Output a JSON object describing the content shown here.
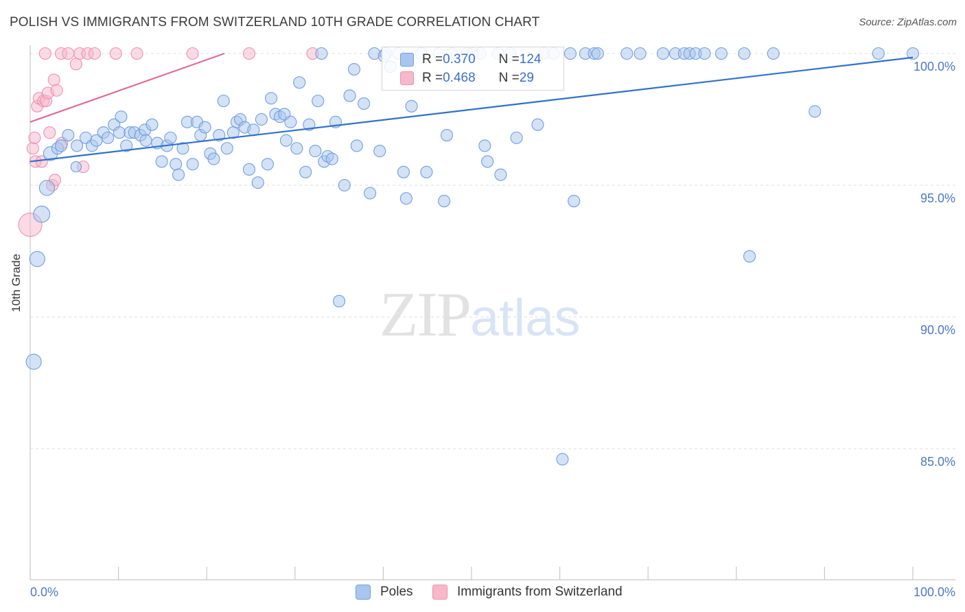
{
  "header": {
    "title": "POLISH VS IMMIGRANTS FROM SWITZERLAND 10TH GRADE CORRELATION CHART",
    "source": "Source: ZipAtlas.com"
  },
  "watermark": {
    "zip": "ZIP",
    "atlas": "atlas"
  },
  "colors": {
    "poles_fill": "#a9c6ee",
    "poles_stroke": "#6f9ee0",
    "poles_line": "#2f6fce",
    "swiss_fill": "#f6b8cb",
    "swiss_stroke": "#ef8fae",
    "swiss_line": "#e16b96",
    "grid": "#dddddd",
    "axis_label": "#4a78c5"
  },
  "legend": {
    "rows": [
      {
        "r_label": "R = ",
        "r_value": "0.370",
        "n_label": "N = ",
        "n_value": "124"
      },
      {
        "r_label": "R = ",
        "r_value": "0.468",
        "n_label": "N = ",
        "n_value": "29"
      }
    ]
  },
  "bottom_legend": {
    "poles": "Poles",
    "swiss": "Immigrants from Switzerland"
  },
  "chart_data": {
    "type": "scatter",
    "xlabel": "",
    "ylabel": "10th Grade",
    "xlim": [
      0,
      100
    ],
    "ylim": [
      80.5,
      100.8
    ],
    "x_tick_labels": [
      "0.0%",
      "100.0%"
    ],
    "y_ticks": [
      100,
      95,
      90,
      85
    ],
    "y_tick_labels": [
      "100.0%",
      "95.0%",
      "90.0%",
      "85.0%"
    ],
    "grid": true,
    "series": [
      {
        "name": "Poles",
        "trend": {
          "x": [
            0,
            100
          ],
          "y": [
            95.9,
            99.85
          ]
        },
        "points": [
          [
            0.4,
            88.3,
            1.3
          ],
          [
            0.8,
            92.2,
            1.3
          ],
          [
            1.3,
            93.9,
            1.4
          ],
          [
            1.9,
            94.9,
            1.3
          ],
          [
            2.3,
            96.2,
            1.2
          ],
          [
            3.1,
            96.4,
            1.0
          ],
          [
            3.5,
            96.5,
            1.0
          ],
          [
            4.3,
            96.9,
            1.0
          ],
          [
            5.3,
            96.5,
            1.0
          ],
          [
            5.2,
            95.7,
            0.9
          ],
          [
            6.3,
            96.8,
            1.0
          ],
          [
            7.0,
            96.5,
            1.0
          ],
          [
            7.5,
            96.7,
            1.0
          ],
          [
            8.3,
            97.0,
            1.0
          ],
          [
            8.8,
            96.8,
            1.0
          ],
          [
            9.5,
            97.3,
            1.0
          ],
          [
            10.1,
            97.0,
            1.0
          ],
          [
            10.3,
            97.6,
            1.0
          ],
          [
            10.9,
            96.5,
            1.0
          ],
          [
            11.3,
            97.0,
            1.0
          ],
          [
            11.8,
            97.0,
            1.0
          ],
          [
            12.5,
            96.9,
            1.0
          ],
          [
            13.0,
            97.1,
            1.0
          ],
          [
            13.1,
            96.7,
            1.0
          ],
          [
            13.8,
            97.3,
            1.0
          ],
          [
            14.4,
            96.6,
            1.0
          ],
          [
            14.9,
            95.9,
            1.0
          ],
          [
            15.5,
            96.5,
            1.0
          ],
          [
            15.9,
            96.8,
            1.0
          ],
          [
            16.5,
            95.8,
            1.0
          ],
          [
            16.8,
            95.4,
            1.0
          ],
          [
            17.3,
            96.4,
            1.0
          ],
          [
            17.8,
            97.4,
            1.0
          ],
          [
            18.4,
            95.8,
            1.0
          ],
          [
            18.9,
            97.4,
            1.0
          ],
          [
            19.3,
            96.9,
            1.0
          ],
          [
            19.8,
            97.2,
            1.0
          ],
          [
            20.4,
            96.2,
            1.0
          ],
          [
            20.8,
            96.0,
            1.0
          ],
          [
            21.4,
            96.9,
            1.0
          ],
          [
            21.9,
            98.2,
            1.0
          ],
          [
            22.3,
            96.4,
            1.0
          ],
          [
            23.0,
            97.0,
            1.0
          ],
          [
            23.4,
            97.4,
            1.0
          ],
          [
            23.8,
            97.5,
            1.0
          ],
          [
            24.3,
            97.2,
            1.0
          ],
          [
            24.8,
            95.6,
            1.0
          ],
          [
            25.3,
            97.1,
            1.0
          ],
          [
            25.8,
            95.1,
            1.0
          ],
          [
            26.2,
            97.5,
            1.0
          ],
          [
            26.9,
            95.8,
            1.0
          ],
          [
            27.3,
            98.3,
            1.0
          ],
          [
            27.8,
            97.7,
            1.0
          ],
          [
            28.3,
            97.6,
            1.0
          ],
          [
            28.8,
            97.7,
            1.0
          ],
          [
            29.0,
            96.7,
            1.0
          ],
          [
            29.5,
            97.4,
            1.0
          ],
          [
            30.2,
            96.4,
            1.0
          ],
          [
            30.5,
            98.9,
            1.0
          ],
          [
            31.2,
            95.5,
            1.0
          ],
          [
            31.6,
            97.3,
            1.0
          ],
          [
            32.3,
            96.3,
            1.0
          ],
          [
            32.6,
            98.2,
            1.0
          ],
          [
            33.3,
            95.9,
            1.0
          ],
          [
            33.7,
            96.1,
            1.0
          ],
          [
            34.2,
            96.0,
            1.0
          ],
          [
            34.6,
            97.4,
            1.0
          ],
          [
            35.0,
            90.6,
            1.0
          ],
          [
            35.6,
            95.0,
            1.0
          ],
          [
            36.2,
            98.4,
            1.0
          ],
          [
            36.7,
            99.4,
            1.0
          ],
          [
            37.0,
            96.5,
            1.0
          ],
          [
            37.8,
            98.1,
            1.0
          ],
          [
            38.5,
            94.7,
            1.0
          ],
          [
            39.0,
            100.0,
            1.0
          ],
          [
            39.6,
            96.3,
            1.0
          ],
          [
            40.3,
            100.0,
            1.0
          ],
          [
            40.8,
            99.5,
            1.0
          ],
          [
            41.7,
            100.0,
            1.0
          ],
          [
            42.3,
            95.5,
            1.0
          ],
          [
            42.6,
            94.5,
            1.0
          ],
          [
            43.2,
            98.0,
            1.0
          ],
          [
            44.3,
            100.0,
            1.0
          ],
          [
            44.9,
            95.5,
            1.0
          ],
          [
            46.3,
            100.0,
            1.0
          ],
          [
            46.9,
            94.4,
            1.0
          ],
          [
            47.2,
            96.9,
            1.0
          ],
          [
            49.5,
            100.0,
            1.0
          ],
          [
            50.1,
            100.0,
            1.0
          ],
          [
            51.0,
            100.0,
            1.0
          ],
          [
            51.5,
            96.5,
            1.0
          ],
          [
            51.8,
            95.9,
            1.0
          ],
          [
            53.0,
            100.0,
            1.0
          ],
          [
            53.3,
            95.4,
            1.0
          ],
          [
            54.4,
            100.0,
            1.0
          ],
          [
            55.1,
            96.8,
            1.0
          ],
          [
            56.3,
            99.0,
            1.0
          ],
          [
            57.5,
            97.3,
            1.0
          ],
          [
            58.2,
            100.0,
            1.0
          ],
          [
            59.3,
            100.0,
            1.0
          ],
          [
            60.3,
            84.6,
            1.0
          ],
          [
            61.2,
            100.0,
            1.0
          ],
          [
            61.6,
            94.4,
            1.0
          ],
          [
            62.9,
            100.0,
            1.0
          ],
          [
            63.9,
            100.0,
            1.0
          ],
          [
            64.3,
            100.0,
            1.0
          ],
          [
            67.6,
            100.0,
            1.0
          ],
          [
            69.1,
            100.0,
            1.0
          ],
          [
            71.7,
            100.0,
            1.0
          ],
          [
            73.1,
            100.0,
            1.0
          ],
          [
            74.1,
            100.0,
            1.0
          ],
          [
            74.7,
            100.0,
            1.0
          ],
          [
            75.4,
            100.0,
            1.0
          ],
          [
            76.4,
            100.0,
            1.0
          ],
          [
            78.3,
            100.0,
            1.0
          ],
          [
            80.9,
            100.0,
            1.0
          ],
          [
            81.5,
            92.3,
            1.0
          ],
          [
            84.2,
            100.0,
            1.0
          ],
          [
            88.9,
            97.8,
            1.0
          ],
          [
            96.1,
            100.0,
            1.0
          ],
          [
            100.0,
            100.0,
            1.0
          ],
          [
            47.8,
            100.0,
            1.0
          ],
          [
            33.0,
            100.0,
            1.0
          ],
          [
            40.1,
            99.9,
            1.0
          ]
        ]
      },
      {
        "name": "Immigrants from Switzerland",
        "trend": {
          "x": [
            0,
            22.0
          ],
          "y": [
            97.4,
            100.0
          ]
        },
        "points": [
          [
            0.0,
            93.5,
            2.0
          ],
          [
            0.3,
            96.4,
            1.0
          ],
          [
            0.5,
            96.8,
            1.0
          ],
          [
            0.6,
            95.9,
            1.0
          ],
          [
            0.8,
            98.0,
            1.0
          ],
          [
            1.0,
            98.3,
            1.0
          ],
          [
            1.3,
            95.9,
            1.0
          ],
          [
            1.5,
            98.2,
            1.0
          ],
          [
            1.8,
            98.2,
            1.0
          ],
          [
            2.0,
            98.5,
            1.0
          ],
          [
            2.2,
            97.0,
            1.0
          ],
          [
            2.5,
            95.0,
            1.0
          ],
          [
            2.7,
            99.0,
            1.0
          ],
          [
            2.8,
            95.2,
            1.0
          ],
          [
            3.0,
            98.6,
            1.0
          ],
          [
            3.6,
            96.6,
            1.0
          ],
          [
            1.7,
            100.0,
            1.0
          ],
          [
            3.5,
            100.0,
            1.0
          ],
          [
            4.3,
            100.0,
            1.0
          ],
          [
            5.2,
            99.6,
            1.0
          ],
          [
            5.6,
            100.0,
            1.0
          ],
          [
            6.0,
            95.7,
            1.0
          ],
          [
            6.5,
            100.0,
            1.0
          ],
          [
            7.3,
            100.0,
            1.0
          ],
          [
            9.7,
            100.0,
            1.0
          ],
          [
            12.1,
            100.0,
            1.0
          ],
          [
            18.4,
            100.0,
            1.0
          ],
          [
            24.8,
            100.0,
            1.0
          ],
          [
            32.0,
            100.0,
            1.0
          ]
        ]
      }
    ]
  }
}
